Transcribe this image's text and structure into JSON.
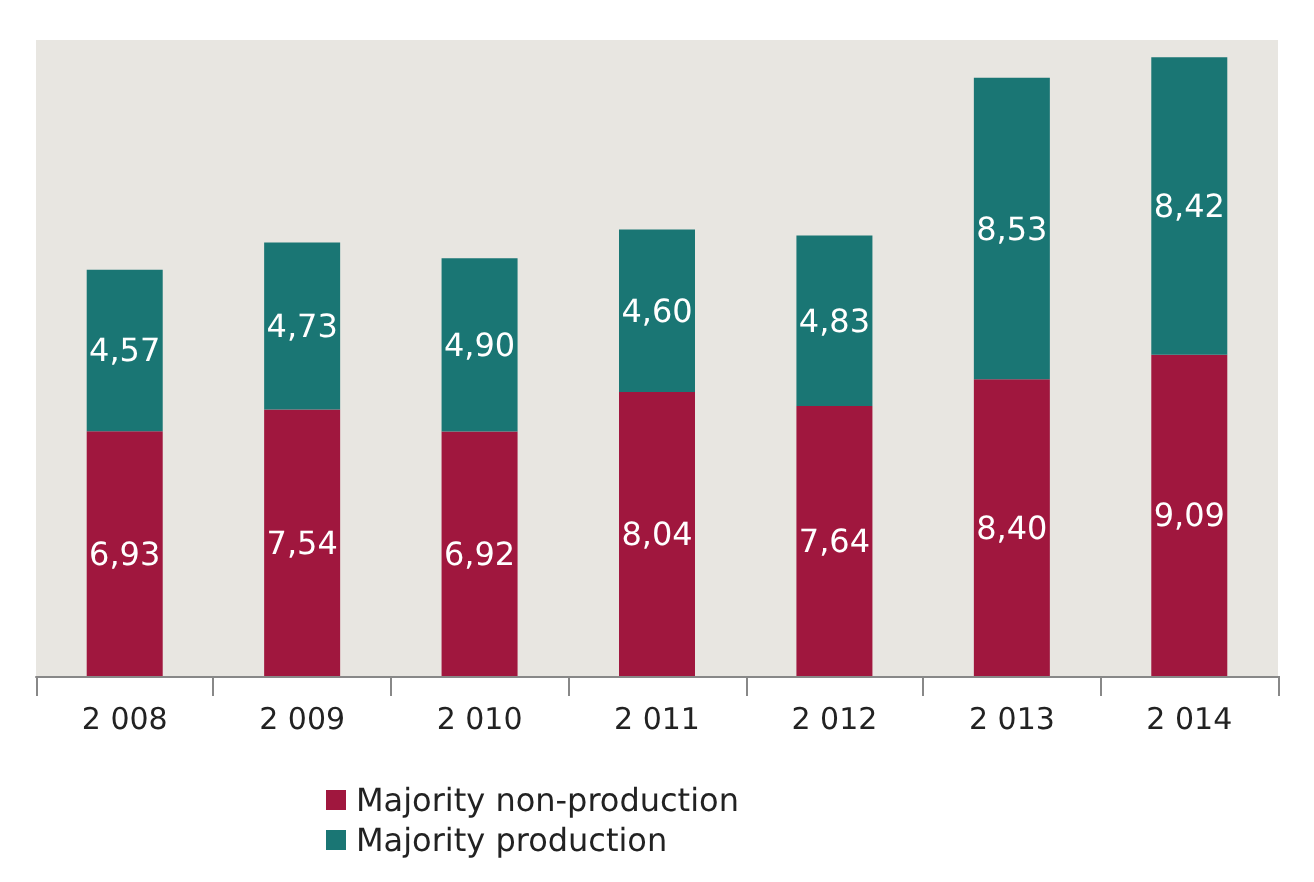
{
  "chart_data": {
    "type": "bar",
    "stacked": true,
    "categories": [
      "2 008",
      "2 009",
      "2 010",
      "2 011",
      "2 012",
      "2 013",
      "2 014"
    ],
    "series": [
      {
        "name": "Majority non-production",
        "color": "#a0173e",
        "values": [
          6.93,
          7.54,
          6.92,
          8.04,
          7.64,
          8.4,
          9.09
        ],
        "value_labels": [
          "6,93",
          "7,54",
          "6,92",
          "8,04",
          "7,64",
          "8,40",
          "9,09"
        ]
      },
      {
        "name": "Majority production",
        "color": "#1a7674",
        "values": [
          4.57,
          4.73,
          4.9,
          4.6,
          4.83,
          8.53,
          8.42
        ],
        "value_labels": [
          "4,57",
          "4,73",
          "4,90",
          "4,60",
          "4,83",
          "8,53",
          "8,42"
        ]
      }
    ],
    "legend": "bottom"
  }
}
